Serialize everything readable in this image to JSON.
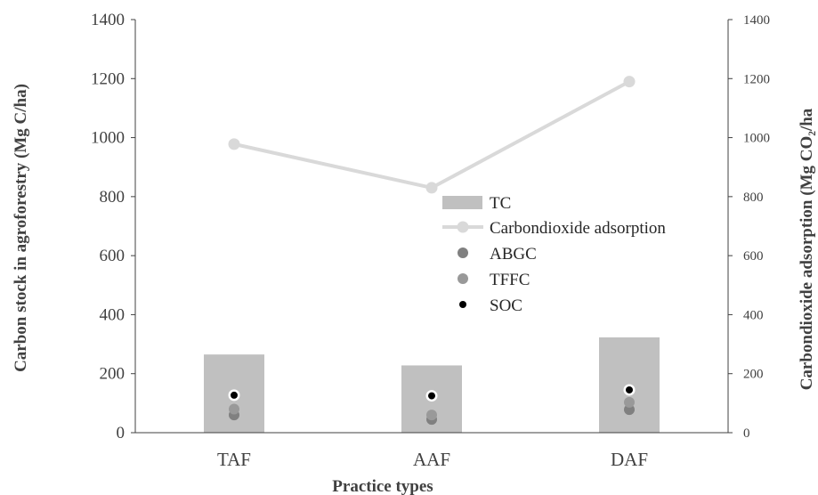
{
  "chart_data": {
    "type": "bar",
    "categories": [
      "TAF",
      "AAF",
      "DAF"
    ],
    "xlabel": "Practice types",
    "ylabel": "Carbon stock in agroforestry (Mg C/ha)",
    "y2label": "Carbondioxide  adsorption (Mg CO₂/ha",
    "ylim": [
      0,
      1400
    ],
    "y2lim": [
      0,
      1400
    ],
    "yticks": [
      "0",
      "200",
      "400",
      "600",
      "800",
      "1000",
      "1200",
      "1400"
    ],
    "grid": false,
    "legend_position": "center-right",
    "series": [
      {
        "name": "TC",
        "type": "bar",
        "axis": "left",
        "values": [
          265,
          228,
          323
        ],
        "color": "#c0c0c0"
      },
      {
        "name": "Carbondioxide adsorption",
        "type": "line",
        "axis": "right",
        "values": [
          978,
          830,
          1190
        ],
        "color": "#d9d9d9"
      },
      {
        "name": "ABGC",
        "type": "scatter",
        "axis": "left",
        "values": [
          60,
          45,
          78
        ],
        "color": "#808080"
      },
      {
        "name": "TFFC",
        "type": "scatter",
        "axis": "left",
        "values": [
          80,
          60,
          103
        ],
        "color": "#999999"
      },
      {
        "name": "SOC",
        "type": "scatter",
        "axis": "left",
        "values": [
          127,
          125,
          145
        ],
        "color": "#000000"
      }
    ]
  }
}
